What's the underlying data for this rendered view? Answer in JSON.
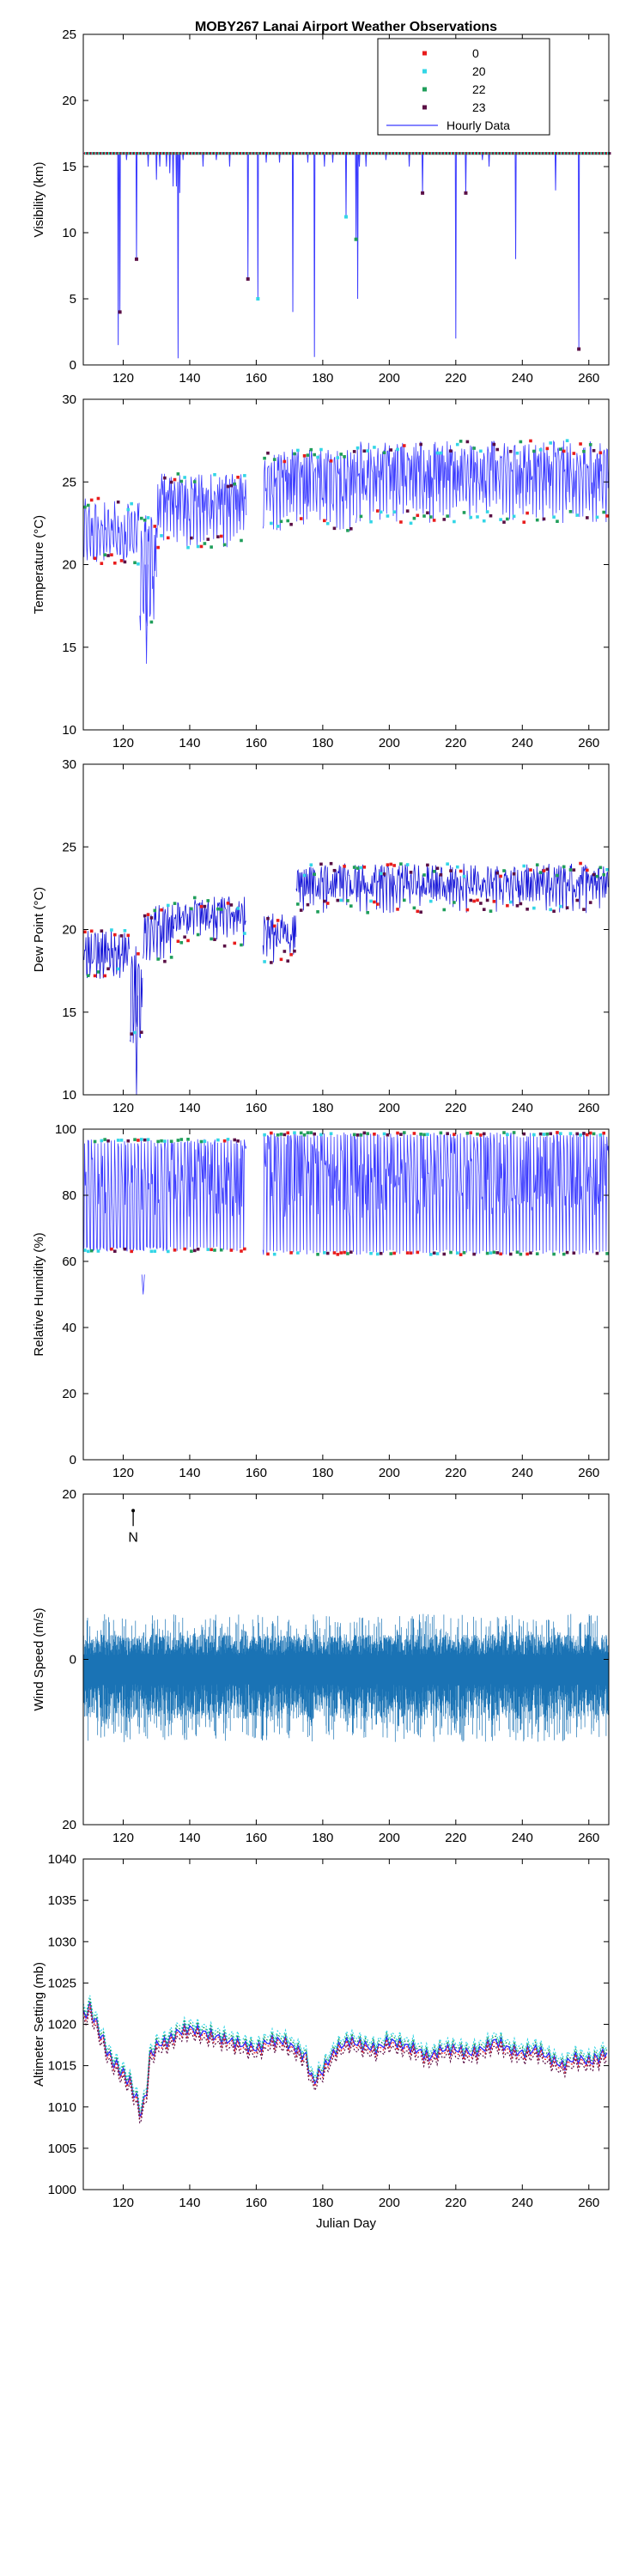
{
  "figure_title": "MOBY267 Lanai Airport Weather Observations",
  "legend": {
    "entries": [
      {
        "label": "0",
        "color": "#e81c1c",
        "kind": "marker"
      },
      {
        "label": "20",
        "color": "#33d6e6",
        "kind": "marker"
      },
      {
        "label": "22",
        "color": "#1f9e5a",
        "kind": "marker"
      },
      {
        "label": "23",
        "color": "#5a0f45",
        "kind": "marker"
      },
      {
        "label": "Hourly Data",
        "color": "#3b3bff",
        "kind": "line"
      }
    ]
  },
  "north_label": "N",
  "chart_data": [
    {
      "id": "visibility",
      "type": "line",
      "ylabel": "Visibility (km)",
      "xlim": [
        108,
        266
      ],
      "ylim": [
        0,
        25
      ],
      "xticks": [
        120,
        140,
        160,
        180,
        200,
        220,
        240,
        260
      ],
      "yticks": [
        0,
        5,
        10,
        15,
        20,
        25
      ],
      "grid": false,
      "baseline": 16,
      "series_color": "#3b3bff",
      "dips": [
        [
          118.5,
          1.5
        ],
        [
          119,
          4
        ],
        [
          121,
          15.5
        ],
        [
          124,
          8
        ],
        [
          127.5,
          15
        ],
        [
          130,
          14
        ],
        [
          131,
          15
        ],
        [
          133,
          15
        ],
        [
          134,
          14.5
        ],
        [
          135,
          13.5
        ],
        [
          136,
          13.5
        ],
        [
          136.5,
          0.5
        ],
        [
          137,
          13
        ],
        [
          138,
          15.5
        ],
        [
          144,
          15
        ],
        [
          148,
          15.5
        ],
        [
          152,
          15
        ],
        [
          157.5,
          6.5
        ],
        [
          160.5,
          5
        ],
        [
          163,
          15.3
        ],
        [
          167,
          15.3
        ],
        [
          171,
          4
        ],
        [
          175.5,
          15.3
        ],
        [
          177.5,
          0.6
        ],
        [
          180.5,
          15
        ],
        [
          183,
          15.3
        ],
        [
          187,
          11.2
        ],
        [
          190,
          9.5
        ],
        [
          190.5,
          5
        ],
        [
          191,
          15
        ],
        [
          193,
          15
        ],
        [
          199,
          15.5
        ],
        [
          206,
          15
        ],
        [
          210,
          13
        ],
        [
          220,
          2
        ],
        [
          223,
          13
        ],
        [
          228,
          15.5
        ],
        [
          230,
          15
        ],
        [
          238,
          8
        ],
        [
          250,
          13.2
        ],
        [
          257,
          1.2
        ]
      ],
      "hour_markers": [
        {
          "x": 119,
          "y": 4,
          "hour": "23"
        },
        {
          "x": 124,
          "y": 8,
          "hour": "23"
        },
        {
          "x": 157.5,
          "y": 6.5,
          "hour": "23"
        },
        {
          "x": 160.5,
          "y": 5,
          "hour": "20"
        },
        {
          "x": 187,
          "y": 11.2,
          "hour": "20"
        },
        {
          "x": 190,
          "y": 9.5,
          "hour": "22"
        },
        {
          "x": 210,
          "y": 13,
          "hour": "23"
        },
        {
          "x": 223,
          "y": 13,
          "hour": "23"
        },
        {
          "x": 257,
          "y": 1.2,
          "hour": "23"
        }
      ]
    },
    {
      "id": "temperature",
      "type": "line",
      "ylabel": "Temperature (°C)",
      "xlim": [
        108,
        266
      ],
      "ylim": [
        10,
        30
      ],
      "xticks": [
        120,
        140,
        160,
        180,
        200,
        220,
        240,
        260
      ],
      "yticks": [
        10,
        15,
        20,
        25,
        30
      ],
      "grid": false,
      "gap": [
        157,
        162
      ],
      "series_color": "#3b3bff",
      "segments": [
        {
          "from": 108,
          "to": 125,
          "low": 20,
          "high": 24
        },
        {
          "from": 125,
          "to": 130,
          "low": 16,
          "high": 23
        },
        {
          "from": 130,
          "to": 157,
          "low": 21,
          "high": 25.5
        },
        {
          "from": 162,
          "to": 190,
          "low": 22,
          "high": 27
        },
        {
          "from": 190,
          "to": 266,
          "low": 22.5,
          "high": 27.5
        }
      ],
      "min_point": [
        127,
        14
      ]
    },
    {
      "id": "dewpoint",
      "type": "line",
      "ylabel": "Dew Point (°C)",
      "xlim": [
        108,
        266
      ],
      "ylim": [
        10,
        30
      ],
      "xticks": [
        120,
        140,
        160,
        180,
        200,
        220,
        240,
        260
      ],
      "yticks": [
        10,
        15,
        20,
        25,
        30
      ],
      "grid": false,
      "gap": [
        157,
        162
      ],
      "series_color": "#1616d8",
      "segments": [
        {
          "from": 108,
          "to": 122,
          "low": 17,
          "high": 20
        },
        {
          "from": 122,
          "to": 126,
          "low": 13,
          "high": 19
        },
        {
          "from": 126,
          "to": 135,
          "low": 18,
          "high": 21.5
        },
        {
          "from": 135,
          "to": 157,
          "low": 19,
          "high": 22
        },
        {
          "from": 162,
          "to": 172,
          "low": 18,
          "high": 21
        },
        {
          "from": 172,
          "to": 266,
          "low": 21,
          "high": 24
        }
      ],
      "min_point": [
        124,
        10
      ]
    },
    {
      "id": "humidity",
      "type": "line",
      "ylabel": "Relative Humidity (%)",
      "xlim": [
        108,
        266
      ],
      "ylim": [
        0,
        100
      ],
      "xticks": [
        120,
        140,
        160,
        180,
        200,
        220,
        240,
        260
      ],
      "yticks": [
        0,
        20,
        40,
        60,
        80,
        100
      ],
      "grid": false,
      "gap": [
        157,
        162
      ],
      "series_color": "#3b3bff",
      "segments": [
        {
          "from": 108,
          "to": 157,
          "low": 63,
          "high": 97
        },
        {
          "from": 162,
          "to": 266,
          "low": 62,
          "high": 99
        }
      ],
      "min_point": [
        126,
        50
      ]
    },
    {
      "id": "wind",
      "type": "bar",
      "ylabel": "Wind Speed (m/s)",
      "xlim": [
        108,
        266
      ],
      "ylim": [
        -20,
        20
      ],
      "xticks": [
        120,
        140,
        160,
        180,
        200,
        220,
        240,
        260
      ],
      "yticks": [
        20,
        0,
        20
      ],
      "ytick_values": [
        20,
        0,
        -20
      ],
      "grid": false,
      "series_color": "#1a73b5",
      "arrow_origin": [
        123,
        18
      ],
      "up_range": [
        0.5,
        5.5
      ],
      "down_range": [
        3,
        10
      ]
    },
    {
      "id": "pressure",
      "type": "line",
      "ylabel": "Altimeter Setting (mb)",
      "xlabel": "Julian Day",
      "xlim": [
        108,
        266
      ],
      "ylim": [
        1000,
        1040
      ],
      "xticks": [
        120,
        140,
        160,
        180,
        200,
        220,
        240,
        260
      ],
      "yticks": [
        1000,
        1005,
        1010,
        1015,
        1020,
        1025,
        1030,
        1035,
        1040
      ],
      "grid": false,
      "series_color": "#2b2bff",
      "path": [
        [
          108,
          1021
        ],
        [
          110,
          1022
        ],
        [
          112,
          1020
        ],
        [
          114,
          1018
        ],
        [
          116,
          1016
        ],
        [
          118,
          1015
        ],
        [
          120,
          1014
        ],
        [
          122,
          1013
        ],
        [
          124,
          1011
        ],
        [
          125,
          1009.5
        ],
        [
          126,
          1010
        ],
        [
          127,
          1012
        ],
        [
          128,
          1016
        ],
        [
          130,
          1017.5
        ],
        [
          134,
          1018
        ],
        [
          136,
          1019
        ],
        [
          140,
          1019.5
        ],
        [
          144,
          1019
        ],
        [
          148,
          1018.5
        ],
        [
          152,
          1018
        ],
        [
          156,
          1017.5
        ],
        [
          160,
          1017
        ],
        [
          164,
          1018
        ],
        [
          168,
          1018
        ],
        [
          172,
          1017
        ],
        [
          175,
          1016
        ],
        [
          177,
          1013
        ],
        [
          180,
          1014.5
        ],
        [
          184,
          1017
        ],
        [
          188,
          1018
        ],
        [
          192,
          1017.5
        ],
        [
          196,
          1017
        ],
        [
          200,
          1018
        ],
        [
          204,
          1017.5
        ],
        [
          208,
          1017
        ],
        [
          212,
          1016
        ],
        [
          216,
          1017
        ],
        [
          220,
          1017
        ],
        [
          224,
          1016.5
        ],
        [
          228,
          1017
        ],
        [
          232,
          1018
        ],
        [
          236,
          1017
        ],
        [
          240,
          1016.5
        ],
        [
          244,
          1017
        ],
        [
          248,
          1016
        ],
        [
          252,
          1015
        ],
        [
          256,
          1016
        ],
        [
          260,
          1015.5
        ],
        [
          263,
          1016
        ],
        [
          266,
          1017
        ]
      ]
    }
  ]
}
